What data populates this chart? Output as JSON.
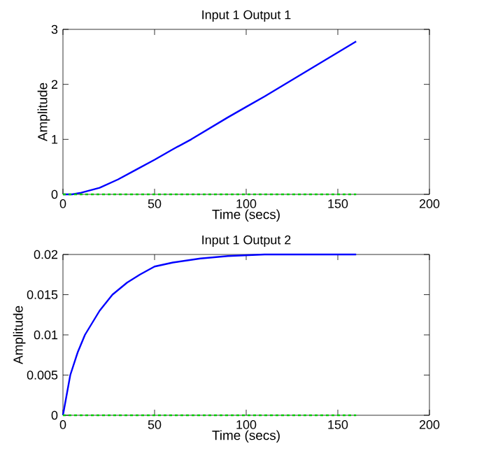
{
  "chart_data": [
    {
      "type": "line",
      "title": "Input 1 Output 1",
      "xlabel": "Time (secs)",
      "ylabel": "Amplitude",
      "xlim": [
        0,
        200
      ],
      "ylim": [
        0,
        3
      ],
      "xticks": [
        0,
        50,
        100,
        150,
        200
      ],
      "yticks": [
        0,
        1,
        2,
        3
      ],
      "series": [
        {
          "color": "#0000ff",
          "line_style": "solid",
          "x": [
            0,
            5,
            10,
            20,
            30,
            40,
            50,
            60,
            70,
            80,
            90,
            100,
            110,
            120,
            130,
            140,
            150,
            160
          ],
          "values": [
            0,
            0,
            0.03,
            0.12,
            0.27,
            0.45,
            0.63,
            0.82,
            1.0,
            1.2,
            1.4,
            1.59,
            1.78,
            1.98,
            2.18,
            2.38,
            2.58,
            2.78
          ]
        },
        {
          "color": "#00cc00",
          "line_style": "dashed",
          "x": [
            0,
            160
          ],
          "values": [
            0,
            0
          ]
        }
      ]
    },
    {
      "type": "line",
      "title": "Input 1 Output 2",
      "xlabel": "Time (secs)",
      "ylabel": "Amplitude",
      "xlim": [
        0,
        200
      ],
      "ylim": [
        0,
        0.02
      ],
      "xticks": [
        0,
        50,
        100,
        150,
        200
      ],
      "yticks": [
        0,
        0.005,
        0.01,
        0.015,
        0.02
      ],
      "series": [
        {
          "color": "#0000ff",
          "line_style": "solid",
          "x": [
            0,
            4,
            8,
            12,
            20,
            27,
            35,
            42,
            50,
            60,
            75,
            90,
            110,
            160
          ],
          "values": [
            0,
            0.005,
            0.0078,
            0.01,
            0.013,
            0.015,
            0.0165,
            0.0175,
            0.0185,
            0.019,
            0.0195,
            0.0198,
            0.02,
            0.02
          ]
        },
        {
          "color": "#00cc00",
          "line_style": "dashed",
          "x": [
            0,
            160
          ],
          "values": [
            0,
            0
          ]
        }
      ]
    }
  ]
}
